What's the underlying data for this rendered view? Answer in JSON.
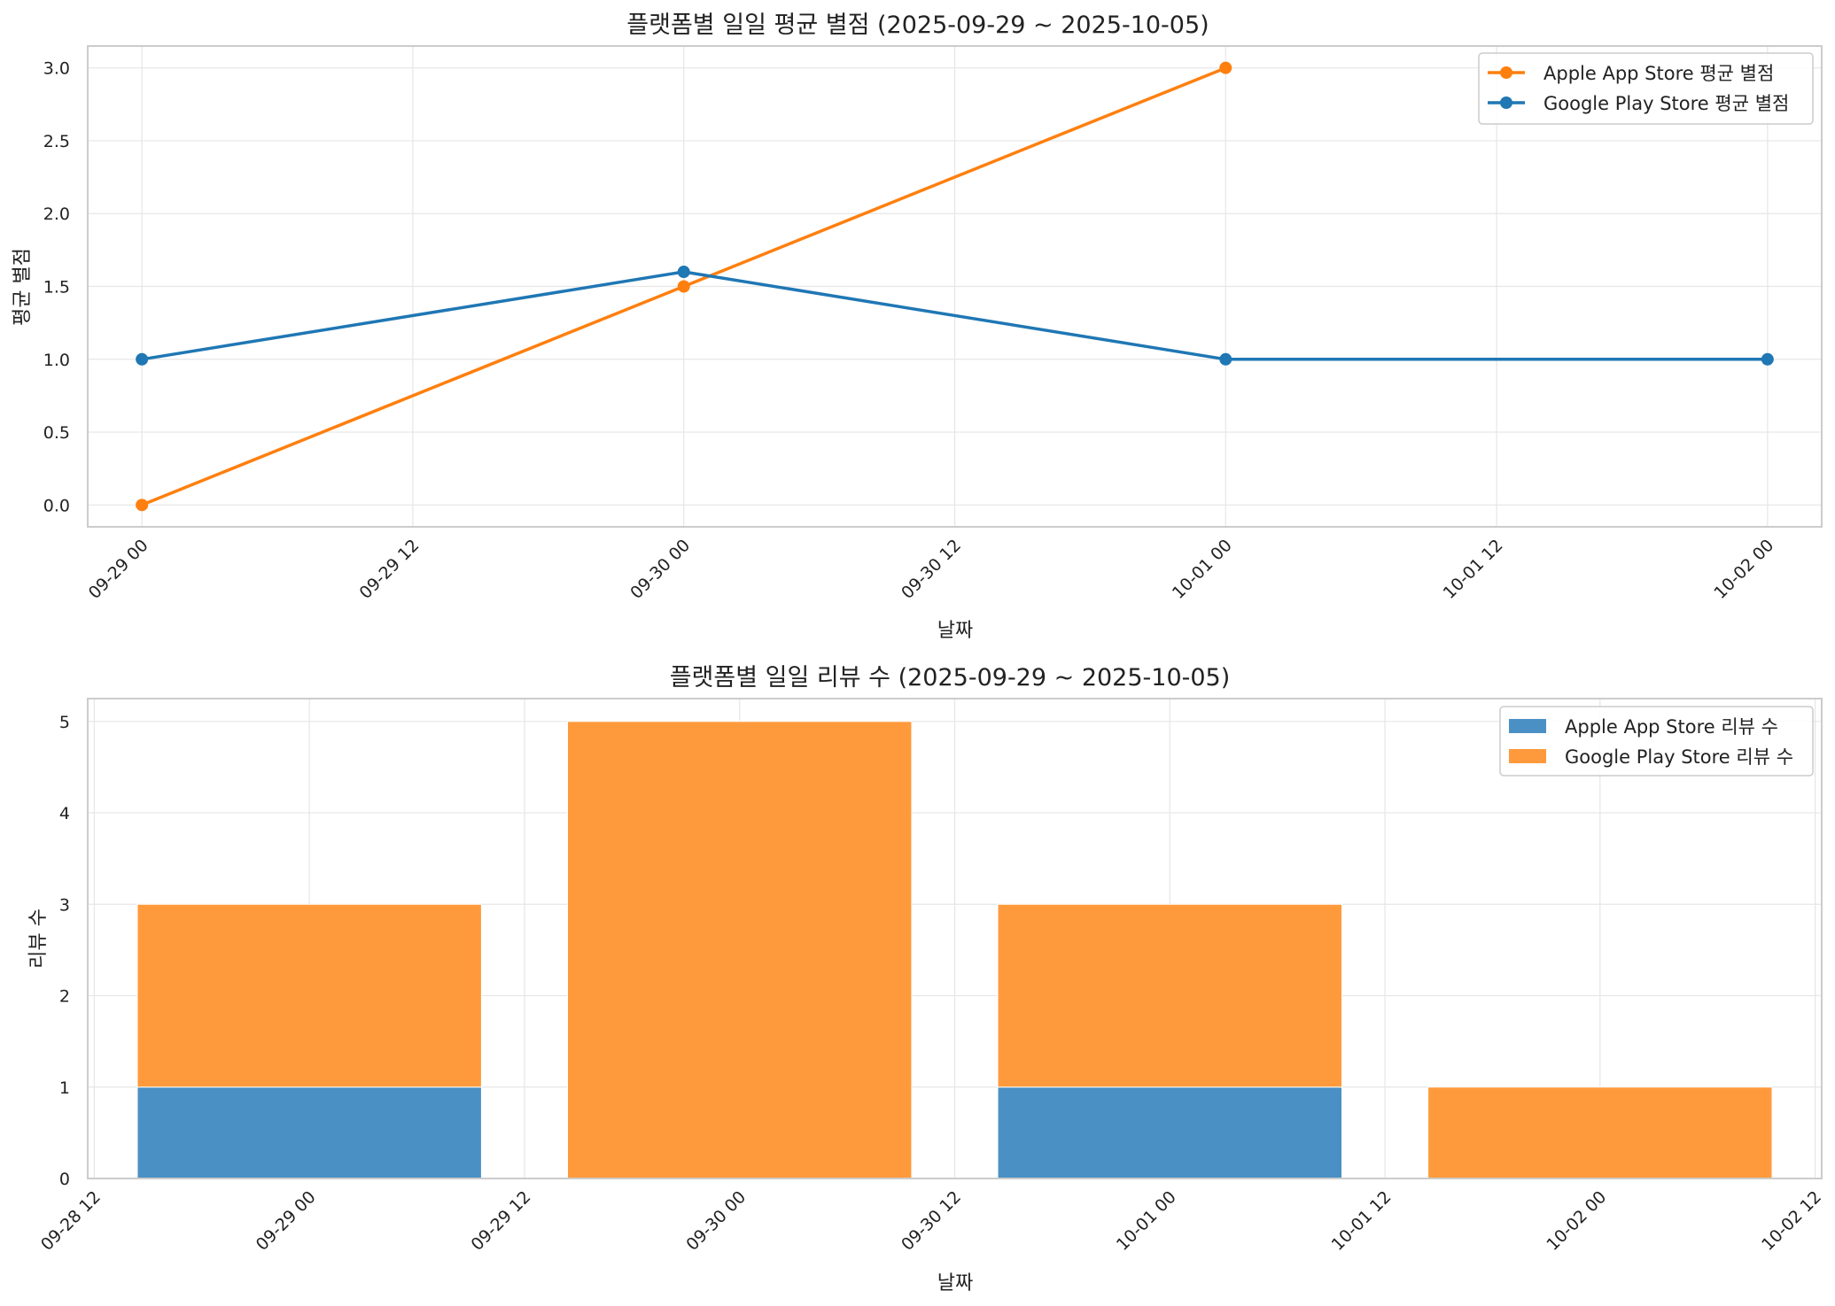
{
  "colors": {
    "apple": "#ff7f0e",
    "google": "#1f77b4",
    "grid": "#e6e6e6",
    "spine": "#cccccc",
    "bar_apple": "#4a90c4",
    "bar_google": "#ff9a3c"
  },
  "chart_data": [
    {
      "type": "line",
      "title": "플랫폼별 일일 평균 별점 (2025-09-29 ~ 2025-10-05)",
      "xlabel": "날짜",
      "ylabel": "평균 별점",
      "x_range": [
        "2025-09-28 21:36",
        "2025-10-02 02:24"
      ],
      "ylim": [
        -0.15,
        3.15
      ],
      "y_ticks": [
        0.0,
        0.5,
        1.0,
        1.5,
        2.0,
        2.5,
        3.0
      ],
      "y_tick_labels": [
        "0.0",
        "0.5",
        "1.0",
        "1.5",
        "2.0",
        "2.5",
        "3.0"
      ],
      "x_ticks": [
        "2025-09-29 00:00",
        "2025-09-29 12:00",
        "2025-09-30 00:00",
        "2025-09-30 12:00",
        "2025-10-01 00:00",
        "2025-10-01 12:00",
        "2025-10-02 00:00"
      ],
      "x_tick_labels": [
        "09-29 00",
        "09-29 12",
        "09-30 00",
        "09-30 12",
        "10-01 00",
        "10-01 12",
        "10-02 00"
      ],
      "grid": true,
      "legend_position": "top-right",
      "series": [
        {
          "name": "Apple App Store 평균 별점",
          "color_key": "apple",
          "x": [
            "2025-09-29 00:00",
            "2025-09-30 00:00",
            "2025-10-01 00:00"
          ],
          "y": [
            0.0,
            1.5,
            3.0
          ]
        },
        {
          "name": "Google Play Store 평균 별점",
          "color_key": "google",
          "x": [
            "2025-09-29 00:00",
            "2025-09-30 00:00",
            "2025-10-01 00:00",
            "2025-10-02 00:00"
          ],
          "y": [
            1.0,
            1.6,
            1.0,
            1.0
          ]
        }
      ]
    },
    {
      "type": "bar",
      "stacked": true,
      "title": "플랫폼별 일일 리뷰 수 (2025-09-29 ~ 2025-10-05)",
      "xlabel": "날짜",
      "ylabel": "리뷰 수",
      "x_range": [
        "2025-09-28 11:38",
        "2025-10-02 12:22"
      ],
      "ylim": [
        0,
        5.25
      ],
      "y_ticks": [
        0,
        1,
        2,
        3,
        4,
        5
      ],
      "y_tick_labels": [
        "0",
        "1",
        "2",
        "3",
        "4",
        "5"
      ],
      "x_ticks": [
        "2025-09-28 12:00",
        "2025-09-29 00:00",
        "2025-09-29 12:00",
        "2025-09-30 00:00",
        "2025-09-30 12:00",
        "2025-10-01 00:00",
        "2025-10-01 12:00",
        "2025-10-02 00:00",
        "2025-10-02 12:00"
      ],
      "x_tick_labels": [
        "09-28 12",
        "09-29 00",
        "09-29 12",
        "09-30 00",
        "09-30 12",
        "10-01 00",
        "10-01 12",
        "10-02 00",
        "10-02 12"
      ],
      "bar_width_days": 0.8,
      "categories": [
        "2025-09-29",
        "2025-09-30",
        "2025-10-01",
        "2025-10-02"
      ],
      "grid": true,
      "legend_position": "top-right",
      "series": [
        {
          "name": "Apple App Store 리뷰 수",
          "color_key": "bar_apple",
          "values": [
            1,
            0,
            1,
            0
          ]
        },
        {
          "name": "Google Play Store 리뷰 수",
          "color_key": "bar_google",
          "values": [
            2,
            5,
            2,
            1
          ]
        }
      ]
    }
  ]
}
